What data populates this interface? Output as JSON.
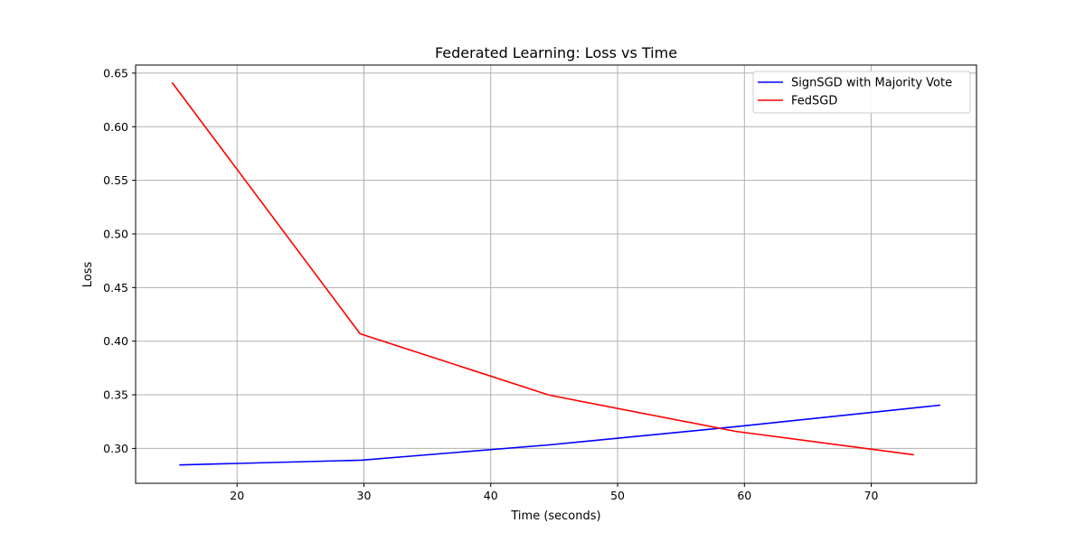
{
  "chart_data": {
    "type": "line",
    "title": "Federated Learning: Loss vs Time",
    "xlabel": "Time (seconds)",
    "ylabel": "Loss",
    "xlim": [
      12.0,
      78.3
    ],
    "ylim": [
      0.2675,
      0.6575
    ],
    "xticks": [
      20,
      30,
      40,
      50,
      60,
      70
    ],
    "yticks": [
      0.3,
      0.35,
      0.4,
      0.45,
      0.5,
      0.55,
      0.6,
      0.65
    ],
    "grid": true,
    "legend_position": "top-right",
    "series": [
      {
        "name": "SignSGD with Majority Vote",
        "color": "#0000ff",
        "x": [
          15.5,
          29.8,
          44.6,
          59.5,
          75.4
        ],
        "y": [
          0.2846,
          0.2891,
          0.3033,
          0.3205,
          0.3403
        ]
      },
      {
        "name": "FedSGD",
        "color": "#ff0000",
        "x": [
          14.9,
          29.7,
          44.6,
          59.3,
          73.3
        ],
        "y": [
          0.6407,
          0.4069,
          0.3497,
          0.3159,
          0.2942
        ]
      }
    ]
  }
}
